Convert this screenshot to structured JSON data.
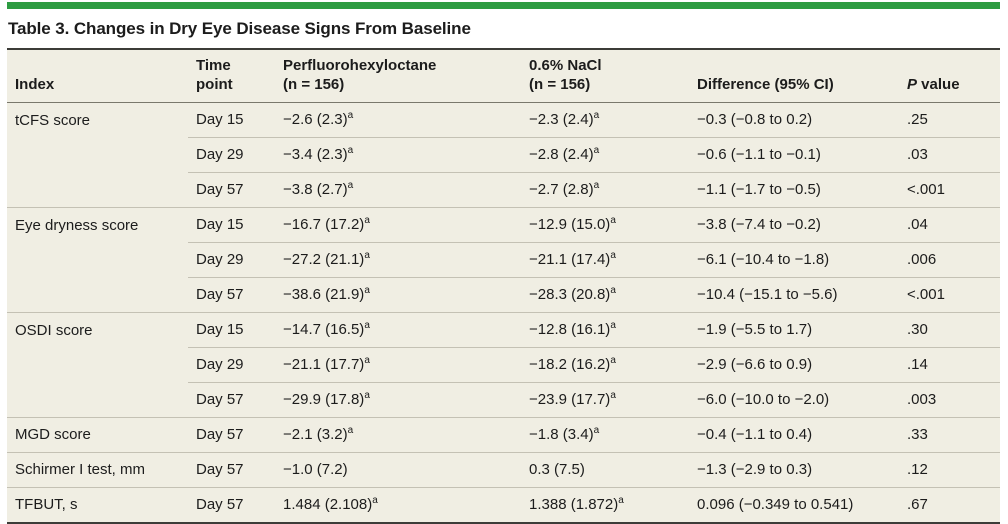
{
  "title": "Table 3. Changes in Dry Eye Disease Signs From Baseline",
  "colors": {
    "accent_green_bar": "#2d9c41",
    "table_background": "#f0eee3",
    "row_separator": "#c4c1b4",
    "dark_rule": "#3c3c38",
    "text": "#1c1c1c"
  },
  "table": {
    "headers": {
      "index": "Index",
      "time_line1": "Time",
      "time_line2": "point",
      "drug_line1": "Perfluorohexyloctane",
      "drug_line2": "(n = 156)",
      "nacl_line1": "0.6% NaCl",
      "nacl_line2": "(n = 156)",
      "difference": "Difference (95% CI)",
      "p_italic": "P",
      "p_rest": " value"
    },
    "rows": [
      {
        "index": "tCFS score",
        "time": "Day 15",
        "drug": "−2.6 (2.3)",
        "drug_sup": "a",
        "nacl": "−2.3 (2.4)",
        "nacl_sup": "a",
        "diff": "−0.3 (−0.8 to 0.2)",
        "p": ".25",
        "group_start": true
      },
      {
        "index": "",
        "time": "Day 29",
        "drug": "−3.4 (2.3)",
        "drug_sup": "a",
        "nacl": "−2.8 (2.4)",
        "nacl_sup": "a",
        "diff": "−0.6 (−1.1 to −0.1)",
        "p": ".03",
        "group_start": false
      },
      {
        "index": "",
        "time": "Day 57",
        "drug": "−3.8 (2.7)",
        "drug_sup": "a",
        "nacl": "−2.7 (2.8)",
        "nacl_sup": "a",
        "diff": "−1.1 (−1.7 to −0.5)",
        "p": "<.001",
        "group_start": false
      },
      {
        "index": "Eye dryness score",
        "time": "Day 15",
        "drug": "−16.7 (17.2)",
        "drug_sup": "a",
        "nacl": "−12.9 (15.0)",
        "nacl_sup": "a",
        "diff": "−3.8 (−7.4 to −0.2)",
        "p": ".04",
        "group_start": true
      },
      {
        "index": "",
        "time": "Day 29",
        "drug": "−27.2 (21.1)",
        "drug_sup": "a",
        "nacl": "−21.1 (17.4)",
        "nacl_sup": "a",
        "diff": "−6.1 (−10.4 to −1.8)",
        "p": ".006",
        "group_start": false
      },
      {
        "index": "",
        "time": "Day 57",
        "drug": "−38.6 (21.9)",
        "drug_sup": "a",
        "nacl": "−28.3 (20.8)",
        "nacl_sup": "a",
        "diff": "−10.4 (−15.1 to −5.6)",
        "p": "<.001",
        "group_start": false
      },
      {
        "index": "OSDI score",
        "time": "Day 15",
        "drug": "−14.7 (16.5)",
        "drug_sup": "a",
        "nacl": "−12.8 (16.1)",
        "nacl_sup": "a",
        "diff": "−1.9 (−5.5 to 1.7)",
        "p": ".30",
        "group_start": true
      },
      {
        "index": "",
        "time": "Day 29",
        "drug": "−21.1 (17.7)",
        "drug_sup": "a",
        "nacl": "−18.2 (16.2)",
        "nacl_sup": "a",
        "diff": "−2.9 (−6.6 to 0.9)",
        "p": ".14",
        "group_start": false
      },
      {
        "index": "",
        "time": "Day 57",
        "drug": "−29.9 (17.8)",
        "drug_sup": "a",
        "nacl": "−23.9 (17.7)",
        "nacl_sup": "a",
        "diff": "−6.0 (−10.0 to −2.0)",
        "p": ".003",
        "group_start": false
      },
      {
        "index": "MGD score",
        "time": "Day 57",
        "drug": "−2.1 (3.2)",
        "drug_sup": "a",
        "nacl": "−1.8 (3.4)",
        "nacl_sup": "a",
        "diff": "−0.4 (−1.1 to 0.4)",
        "p": ".33",
        "group_start": true
      },
      {
        "index": "Schirmer I test, mm",
        "time": "Day 57",
        "drug": "−1.0 (7.2)",
        "drug_sup": "",
        "nacl": "0.3 (7.5)",
        "nacl_sup": "",
        "diff": "−1.3 (−2.9 to 0.3)",
        "p": ".12",
        "group_start": true
      },
      {
        "index": "TFBUT, s",
        "time": "Day 57",
        "drug": "1.484 (2.108)",
        "drug_sup": "a",
        "nacl": "1.388 (1.872)",
        "nacl_sup": "a",
        "diff": "0.096 (−0.349 to 0.541)",
        "p": ".67",
        "group_start": true
      }
    ]
  }
}
